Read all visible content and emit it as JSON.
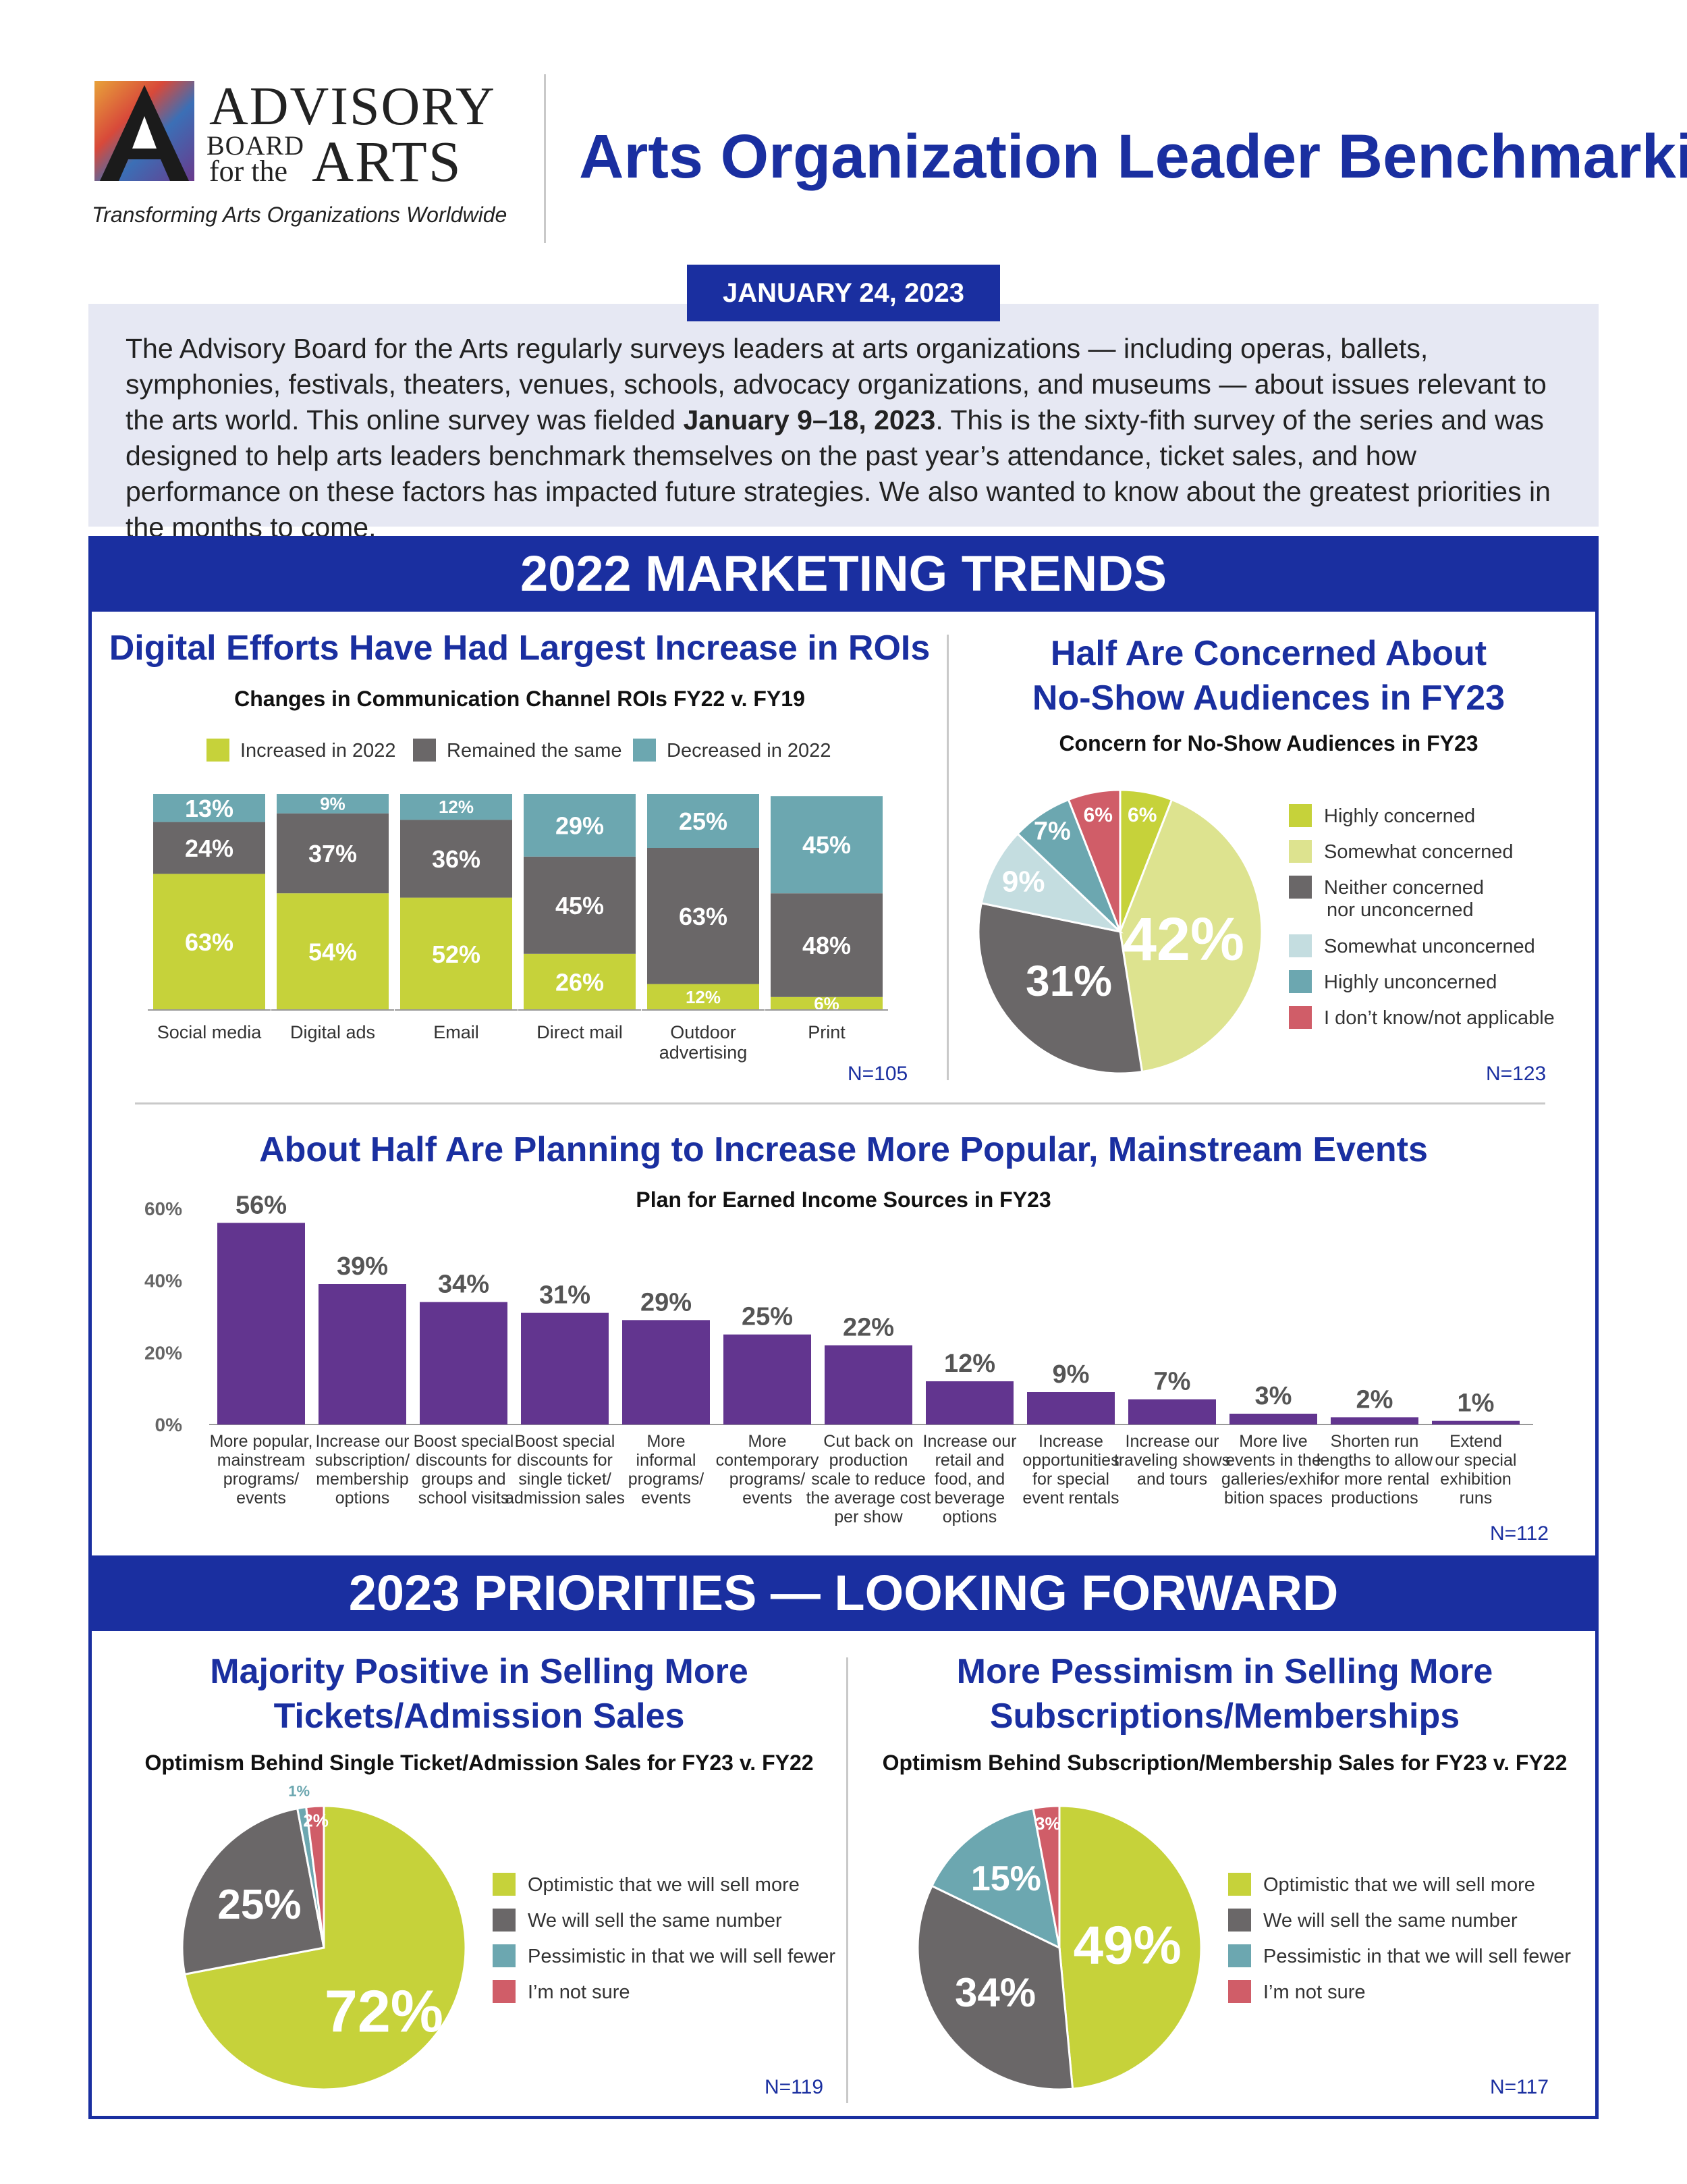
{
  "header": {
    "logo_line1": "ADVISORY",
    "logo_line2": "BOARD",
    "logo_line3": "for the",
    "logo_line4": "ARTS",
    "tagline": "Transforming Arts Organizations Worldwide",
    "title": "Arts Organization Leader Benchmarking",
    "date": "JANUARY 24, 2023"
  },
  "intro": {
    "part1": "The Advisory Board for the Arts regularly surveys leaders at arts organizations — including  operas, ballets, symphonies, festivals, theaters, venues, schools, advocacy organizations, and museums — about issues relevant to the arts world. This online survey was fielded ",
    "bold": "January 9–18, 2023",
    "part2": ". This is the sixty-fith survey of the series and was designed to help arts leaders benchmark themselves on the past year’s attendance, ticket sales, and how performance on these factors has impacted future strategies. We also wanted to know about the greatest priorities in the months to come."
  },
  "sections": {
    "marketing": "2022 MARKETING TRENDS",
    "priorities": "2023 PRIORITIES — LOOKING FORWARD"
  },
  "colors": {
    "navy": "#1a2fa0",
    "lime": "#c6d23a",
    "pale_lime": "#dde38f",
    "gray": "#6a6768",
    "light_blue": "#c4dde0",
    "teal": "#6ca7b0",
    "red": "#d05d68",
    "purple": "#62358f"
  },
  "chart_data": [
    {
      "id": "roi",
      "type": "bar",
      "stacked": true,
      "title": "Digital Efforts Have Had Largest Increase in ROIs",
      "subtitle": "Changes in Communication Channel ROIs FY22 v. FY19",
      "categories": [
        "Social media",
        "Digital ads",
        "Email",
        "Direct mail",
        "Outdoor advertising",
        "Print"
      ],
      "series": [
        {
          "name": "Increased in 2022",
          "color": "#c6d23a",
          "values": [
            63,
            54,
            52,
            26,
            12,
            6
          ]
        },
        {
          "name": "Remained the same",
          "color": "#6a6768",
          "values": [
            24,
            37,
            36,
            45,
            63,
            48
          ]
        },
        {
          "name": "Decreased in 2022",
          "color": "#6ca7b0",
          "values": [
            13,
            9,
            12,
            29,
            25,
            45
          ]
        }
      ],
      "ylim": [
        0,
        100
      ],
      "n": "N=105"
    },
    {
      "id": "noshow",
      "type": "pie",
      "title_line1": "Half Are Concerned About",
      "title_line2": "No-Show Audiences in FY23",
      "subtitle": "Concern for No-Show Audiences in FY23",
      "slices": [
        {
          "label": "Highly concerned",
          "value": 6,
          "color": "#c6d23a"
        },
        {
          "label": "Somewhat concerned",
          "value": 42,
          "color": "#dde38f"
        },
        {
          "label": "Neither concerned nor unconcerned",
          "value": 31,
          "color": "#6a6768"
        },
        {
          "label": "Somewhat unconcerned",
          "value": 9,
          "color": "#c4dde0"
        },
        {
          "label": "Highly unconcerned",
          "value": 7,
          "color": "#6ca7b0"
        },
        {
          "label": "I don’t know/not applicable",
          "value": 6,
          "color": "#d05d68"
        }
      ],
      "legend_lines": {
        "neither_1": "Neither concerned",
        "neither_2": "nor unconcerned"
      },
      "n": "N=123"
    },
    {
      "id": "earned",
      "type": "bar",
      "title": "About Half Are Planning to Increase More Popular, Mainstream Events",
      "subtitle": "Plan for Earned Income Sources in FY23",
      "categories": [
        [
          "More popular,",
          "mainstream",
          "programs/",
          "events"
        ],
        [
          "Increase our",
          "subscription/",
          "membership",
          "options"
        ],
        [
          "Boost special",
          "discounts for",
          "groups and",
          "school visits"
        ],
        [
          "Boost special",
          "discounts for",
          "single ticket/",
          "admission sales"
        ],
        [
          "More",
          "informal",
          "programs/",
          "events"
        ],
        [
          "More",
          "contemporary",
          "programs/",
          "events"
        ],
        [
          "Cut back on",
          "production",
          "scale to reduce",
          "the average cost",
          "per show"
        ],
        [
          "Increase our",
          "retail and",
          "food, and",
          "beverage",
          "options"
        ],
        [
          "Increase",
          "opportunities",
          "for special",
          "event rentals"
        ],
        [
          "Increase our",
          "traveling shows",
          "and tours"
        ],
        [
          "More live",
          "events in the",
          "galleries/exhi-",
          "bition spaces"
        ],
        [
          "Shorten run",
          "lengths to allow",
          "for more rental",
          "productions"
        ],
        [
          "Extend",
          "our special",
          "exhibition",
          "runs"
        ]
      ],
      "values": [
        56,
        39,
        34,
        31,
        29,
        25,
        22,
        12,
        9,
        7,
        3,
        2,
        1
      ],
      "yticks": [
        "0%",
        "20%",
        "40%",
        "60%"
      ],
      "ylim": [
        0,
        60
      ],
      "n": "N=112"
    },
    {
      "id": "tickets",
      "type": "pie",
      "title_line1": "Majority Positive in Selling More",
      "title_line2": "Tickets/Admission Sales",
      "subtitle": "Optimism Behind Single Ticket/Admission Sales for FY23 v. FY22",
      "slices": [
        {
          "label": "Optimistic that we will sell more",
          "value": 72,
          "color": "#c6d23a"
        },
        {
          "label": "We will sell the same number",
          "value": 25,
          "color": "#6a6768"
        },
        {
          "label": "Pessimistic in that we will sell fewer",
          "value": 1,
          "color": "#6ca7b0"
        },
        {
          "label": "I’m not sure",
          "value": 2,
          "color": "#d05d68"
        }
      ],
      "n": "N=119"
    },
    {
      "id": "subs",
      "type": "pie",
      "title_line1": "More Pessimism in Selling More",
      "title_line2": "Subscriptions/Memberships",
      "subtitle": "Optimism Behind Subscription/Membership Sales for FY23 v. FY22",
      "slices": [
        {
          "label": "Optimistic that we will sell more",
          "value": 49,
          "color": "#c6d23a"
        },
        {
          "label": "We will sell the same number",
          "value": 34,
          "color": "#6a6768"
        },
        {
          "label": "Pessimistic in that we will sell fewer",
          "value": 15,
          "color": "#6ca7b0"
        },
        {
          "label": "I’m not sure",
          "value": 3,
          "color": "#d05d68"
        }
      ],
      "n": "N=117"
    }
  ]
}
